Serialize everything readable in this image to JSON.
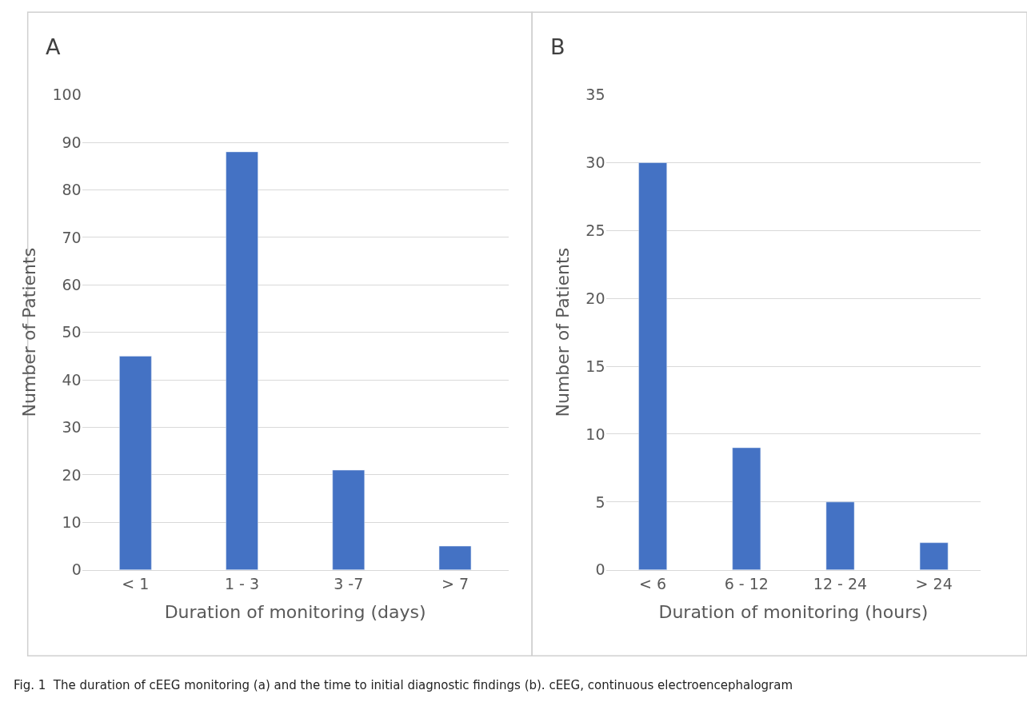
{
  "chart_data": [
    {
      "type": "bar",
      "title": "A",
      "xlabel": "Duration of monitoring (days)",
      "ylabel": "Number of Patients",
      "categories": [
        "< 1",
        "1 - 3",
        "3 -7",
        "> 7"
      ],
      "values": [
        45,
        88,
        21,
        5
      ],
      "color": "#4472c4",
      "ylim": [
        0,
        100
      ],
      "yticks": [
        0,
        10,
        20,
        30,
        40,
        50,
        60,
        70,
        80,
        90,
        100
      ],
      "grid": "y",
      "annotations": [
        "Fig. 1  The duration of cEEG monitoring (a) and the time to initial diagnostic findings (b). cEEG, continuous electroencephalogram"
      ]
    },
    {
      "type": "bar",
      "title": "B",
      "xlabel": "Duration of monitoring (hours)",
      "ylabel": "Number of Patients",
      "categories": [
        "< 6",
        "6 - 12",
        "12 - 24",
        "> 24"
      ],
      "values": [
        30,
        9,
        5,
        2
      ],
      "color": "#4472c4",
      "ylim": [
        0,
        35
      ],
      "yticks": [
        0,
        5,
        10,
        15,
        20,
        25,
        30,
        35
      ],
      "grid": "y"
    }
  ]
}
